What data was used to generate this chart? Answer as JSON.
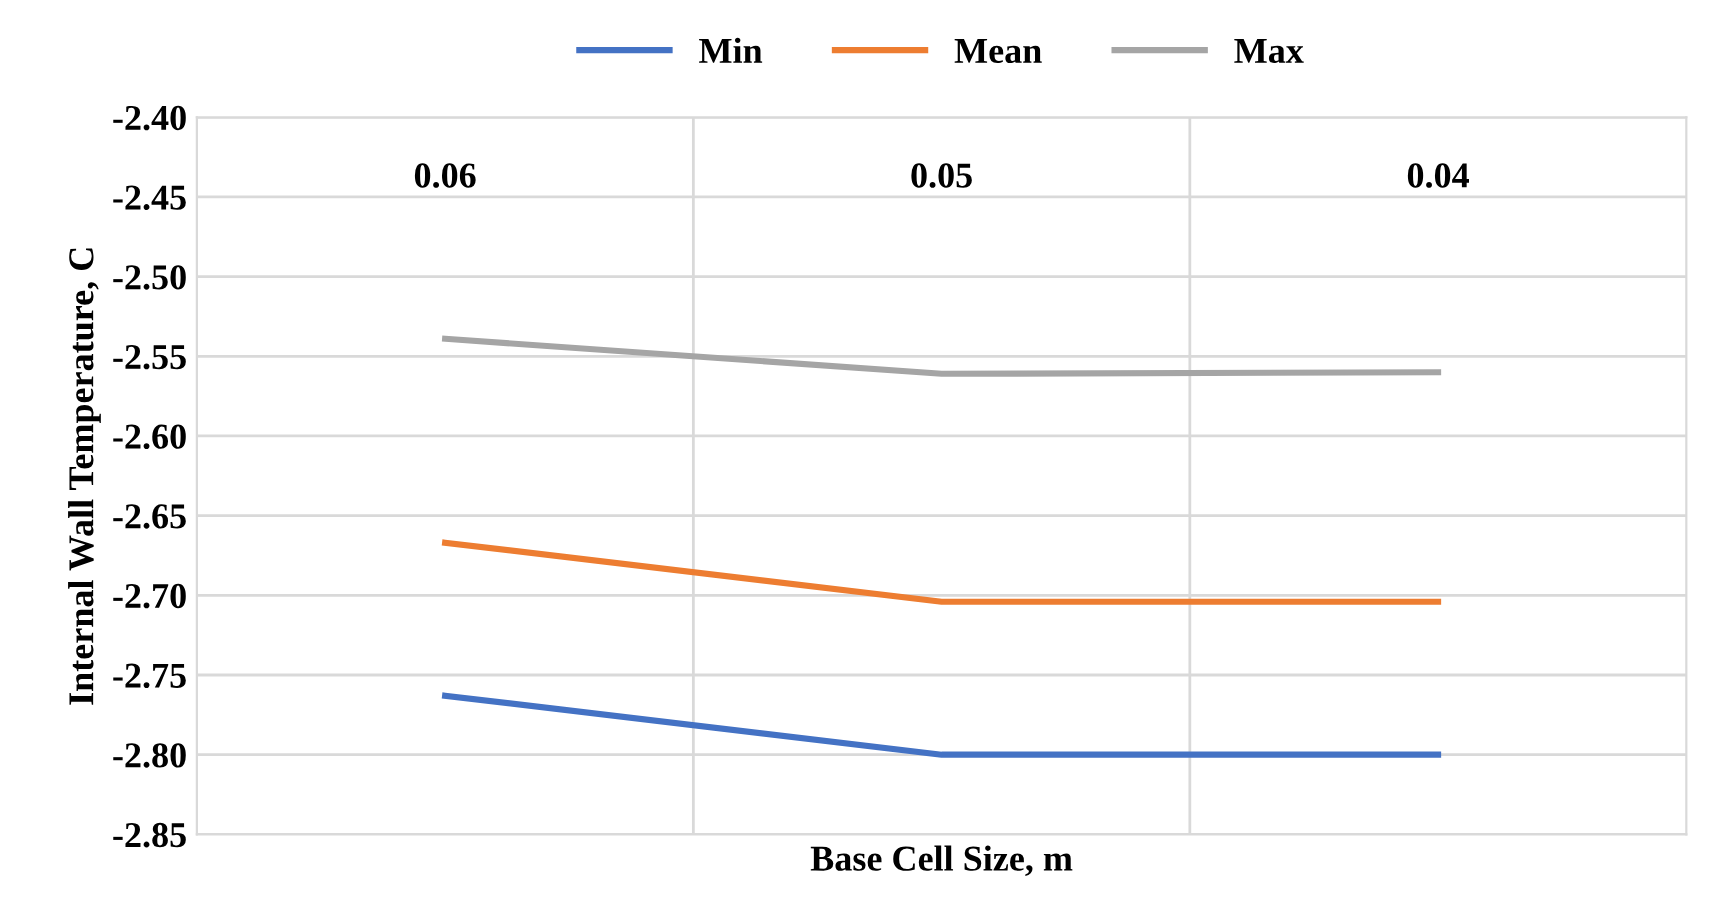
{
  "chart_data": {
    "type": "line",
    "xlabel": "Base Cell Size, m",
    "ylabel": "Internal Wall Temperature, C",
    "categories": [
      "0.06",
      "0.05",
      "0.04"
    ],
    "series": [
      {
        "name": "Min",
        "color": "#4472c4",
        "values": [
          -2.763,
          -2.8,
          -2.8
        ]
      },
      {
        "name": "Mean",
        "color": "#ed7d31",
        "values": [
          -2.667,
          -2.704,
          -2.704
        ]
      },
      {
        "name": "Max",
        "color": "#a5a5a5",
        "values": [
          -2.539,
          -2.561,
          -2.56
        ]
      }
    ],
    "ylim": [
      -2.85,
      -2.4
    ],
    "yticks": [
      {
        "value": -2.85,
        "label": "-2.85"
      },
      {
        "value": -2.8,
        "label": "-2.80"
      },
      {
        "value": -2.75,
        "label": "-2.75"
      },
      {
        "value": -2.7,
        "label": "-2.70"
      },
      {
        "value": -2.65,
        "label": "-2.65"
      },
      {
        "value": -2.6,
        "label": "-2.60"
      },
      {
        "value": -2.55,
        "label": "-2.55"
      },
      {
        "value": -2.5,
        "label": "-2.50"
      },
      {
        "value": -2.45,
        "label": "-2.45"
      },
      {
        "value": -2.4,
        "label": "-2.40"
      }
    ],
    "grid": true,
    "legend": "top",
    "marker": "none",
    "line_style": "solid"
  }
}
